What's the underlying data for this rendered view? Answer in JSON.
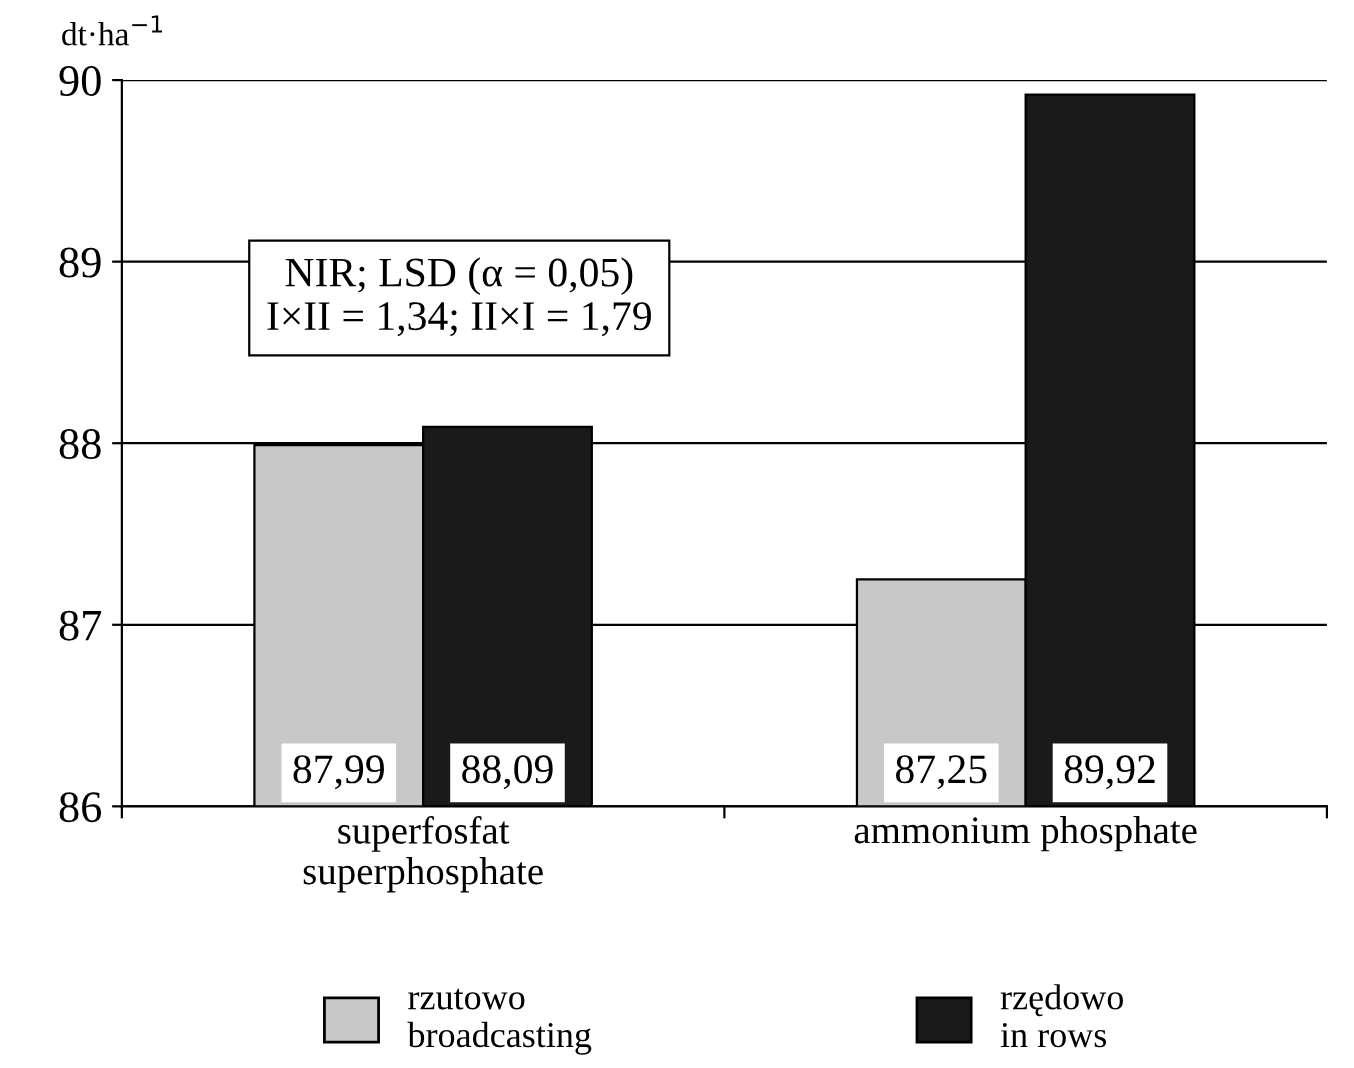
{
  "chart_data": {
    "type": "bar",
    "ylabel": "dt·ha$^{−1}$",
    "categories": [
      "superfosfat\nsuperphosphate",
      "ammonium phosphate"
    ],
    "series": [
      {
        "name": "rzutowo\nbroadcasting",
        "color": "#c8c8c8",
        "values": [
          87.99,
          87.25
        ],
        "value_labels": [
          "87,99",
          "87,25"
        ]
      },
      {
        "name": "rzędowo\nin rows",
        "color": "#1a1a1a",
        "values": [
          88.09,
          89.92
        ],
        "value_labels": [
          "88,09",
          "89,92"
        ]
      }
    ],
    "ylim": [
      86,
      90
    ],
    "yticks": [
      86,
      87,
      88,
      89,
      90
    ],
    "grid": "y",
    "legend": "bottom",
    "annotations": [
      "NIR; LSD (α = 0,05)\nI×II = 1,34; II×I = 1,79"
    ]
  }
}
